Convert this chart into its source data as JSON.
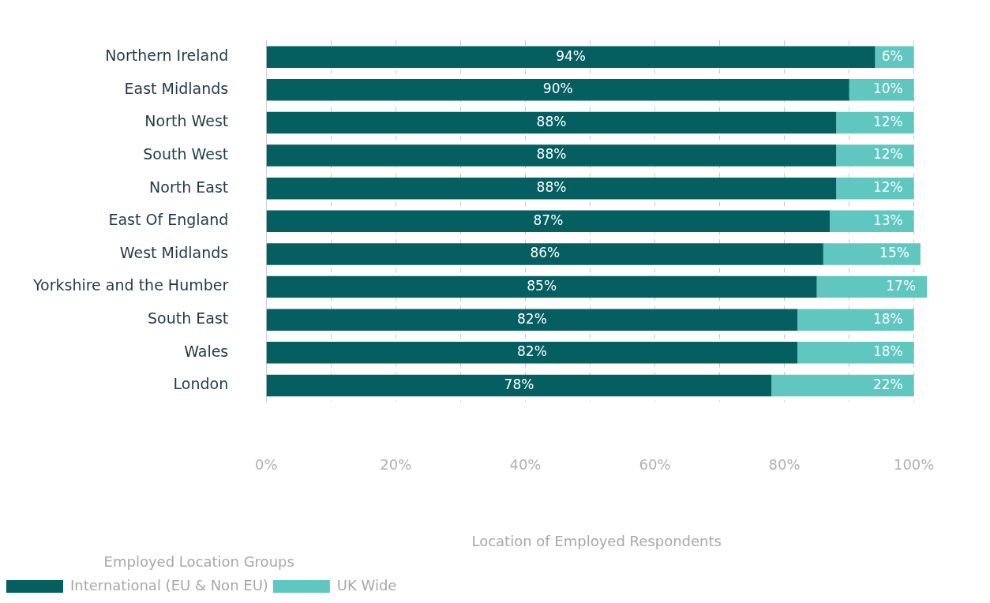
{
  "chart_data": {
    "type": "bar",
    "orientation": "horizontal",
    "stacked": true,
    "xlabel": "Location of Employed Respondents",
    "legend_title": "Employed Location Groups",
    "legend": "bottom left",
    "grid": "x",
    "categories": [
      "Northern Ireland",
      "East Midlands",
      "North West",
      "South West",
      "North East",
      "East Of England",
      "West Midlands",
      "Yorkshire and the Humber",
      "South East",
      "Wales",
      "London"
    ],
    "series": [
      {
        "name": "International (EU & Non EU)",
        "color": "#055f61",
        "values": [
          94,
          90,
          88,
          88,
          88,
          87,
          86,
          85,
          82,
          82,
          78
        ],
        "value_labels": [
          "94%",
          "90%",
          "88%",
          "88%",
          "88%",
          "87%",
          "86%",
          "85%",
          "82%",
          "82%",
          "78%"
        ]
      },
      {
        "name": "UK Wide",
        "color": "#5fc6c0",
        "values": [
          6,
          10,
          12,
          12,
          12,
          13,
          15,
          17,
          18,
          18,
          22
        ],
        "value_labels": [
          "6%",
          "10%",
          "12%",
          "12%",
          "12%",
          "13%",
          "15%",
          "17%",
          "18%",
          "18%",
          "22%"
        ]
      }
    ],
    "xlim": [
      0,
      102
    ],
    "xticks": [
      {
        "value": 0,
        "label": "0%"
      },
      {
        "value": 10,
        "label": null
      },
      {
        "value": 20,
        "label": "20%"
      },
      {
        "value": 30,
        "label": null
      },
      {
        "value": 40,
        "label": "40%"
      },
      {
        "value": 50,
        "label": null
      },
      {
        "value": 60,
        "label": "60%"
      },
      {
        "value": 70,
        "label": null
      },
      {
        "value": 80,
        "label": "80%"
      },
      {
        "value": 90,
        "label": null
      },
      {
        "value": 100,
        "label": "100%"
      }
    ]
  }
}
